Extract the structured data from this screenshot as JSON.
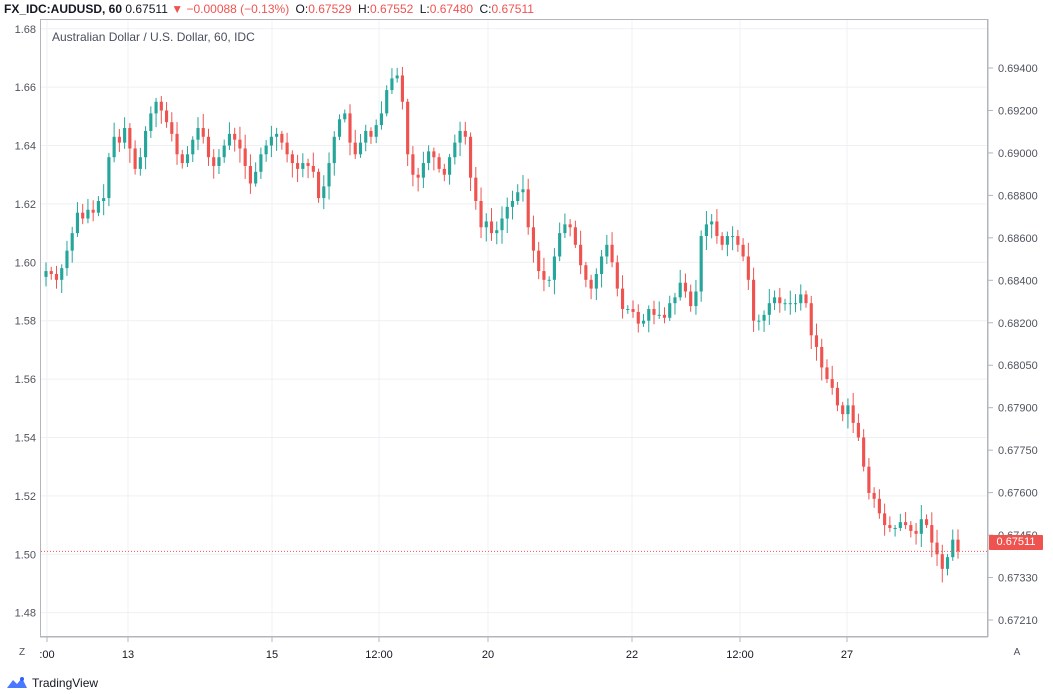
{
  "header": {
    "symbol": "FX_IDC:AUDUSD, 60",
    "last": "0.67511",
    "arrow": "▼",
    "change": "−0.00088 (−0.13%)",
    "o_label": "O:",
    "o_value": "0.67529",
    "h_label": "H:",
    "h_value": "0.67552",
    "l_label": "L:",
    "l_value": "0.67480",
    "c_label": "C:",
    "c_value": "0.67511"
  },
  "footer": {
    "brand": "TradingView"
  },
  "buttons": {
    "left": "Z",
    "right": "A"
  },
  "price_tag": "0.67511",
  "colors": {
    "up": "#26a69a",
    "down": "#ef5350",
    "grid": "#eef0f3",
    "price_line": "#ef5350"
  },
  "chart_data": {
    "type": "candlestick",
    "title": "Australian Dollar / U.S. Dollar, 60, IDC",
    "left_axis": {
      "ticks": [
        "1.68",
        "1.66",
        "1.64",
        "1.62",
        "1.60",
        "1.58",
        "1.56",
        "1.54",
        "1.52",
        "1.50",
        "1.48"
      ],
      "range": [
        1.472,
        1.683
      ]
    },
    "right_axis": {
      "ticks": [
        "0.69400",
        "0.69200",
        "0.69000",
        "0.68800",
        "0.68600",
        "0.68400",
        "0.68200",
        "0.68050",
        "0.67900",
        "0.67750",
        "0.67600",
        "0.67450",
        "0.67330",
        "0.67210"
      ]
    },
    "x_ticks": [
      ":00",
      "13",
      "15",
      "12:00",
      "20",
      "22",
      "12:00",
      "27"
    ],
    "last_price_left_scale": 1.501,
    "series": [
      {
        "values": [
          1.597,
          1.596,
          1.594,
          1.598,
          1.604,
          1.61,
          1.617,
          1.615,
          1.618,
          1.617,
          1.621,
          1.622,
          1.636,
          1.643,
          1.641,
          1.646,
          1.639,
          1.632,
          1.636,
          1.645,
          1.651,
          1.655,
          1.652,
          1.648,
          1.644,
          1.637,
          1.634,
          1.637,
          1.642,
          1.646,
          1.643,
          1.636,
          1.633,
          1.636,
          1.64,
          1.644,
          1.642,
          1.639,
          1.633,
          1.627,
          1.631,
          1.637,
          1.64,
          1.643,
          1.644,
          1.641,
          1.637,
          1.634,
          1.632,
          1.634,
          1.633,
          1.631,
          1.622,
          1.626,
          1.634,
          1.643,
          1.649,
          1.651,
          1.641,
          1.637,
          1.641,
          1.645,
          1.643,
          1.647,
          1.651,
          1.659,
          1.663,
          1.664,
          1.655,
          1.637,
          1.63,
          1.629,
          1.634,
          1.638,
          1.636,
          1.632,
          1.63,
          1.636,
          1.641,
          1.645,
          1.643,
          1.629,
          1.621,
          1.612,
          1.614,
          1.61,
          1.611,
          1.615,
          1.619,
          1.621,
          1.624,
          1.625,
          1.612,
          1.604,
          1.597,
          1.594,
          1.594,
          1.602,
          1.61,
          1.613,
          1.612,
          1.606,
          1.599,
          1.594,
          1.591,
          1.596,
          1.602,
          1.606,
          1.6,
          1.591,
          1.584,
          1.584,
          1.583,
          1.579,
          1.58,
          1.584,
          1.582,
          1.582,
          1.581,
          1.586,
          1.588,
          1.593,
          1.59,
          1.585,
          1.59,
          1.609,
          1.613,
          1.614,
          1.609,
          1.606,
          1.609,
          1.609,
          1.606,
          1.602,
          1.594,
          1.58,
          1.58,
          1.582,
          1.586,
          1.588,
          1.586,
          1.586,
          1.586,
          1.586,
          1.589,
          1.586,
          1.575,
          1.571,
          1.564,
          1.56,
          1.557,
          1.551,
          1.548,
          1.551,
          1.545,
          1.54,
          1.53,
          1.521,
          1.519,
          1.514,
          1.51,
          1.509,
          1.509,
          1.511,
          1.51,
          1.508,
          1.507,
          1.512,
          1.51,
          1.504,
          1.5,
          1.495,
          1.499,
          1.505,
          1.501
        ]
      }
    ]
  }
}
